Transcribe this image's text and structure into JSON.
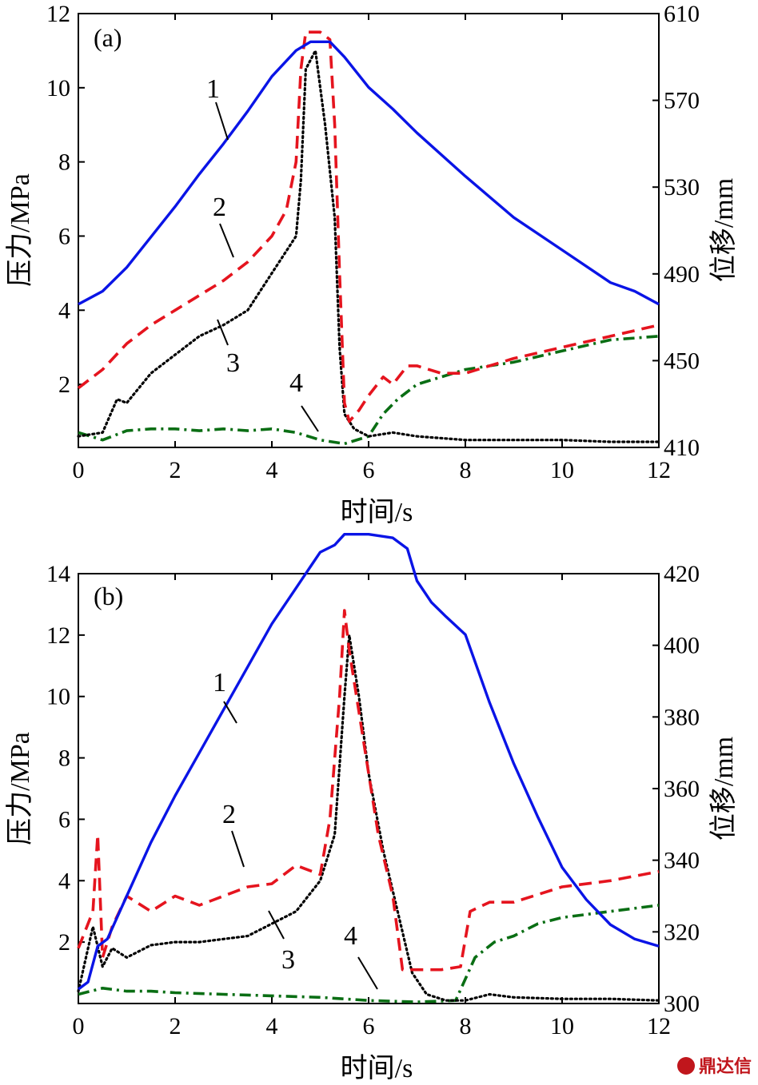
{
  "figure": {
    "watermark": "鼎达信"
  },
  "chart_data": [
    {
      "type": "line",
      "panel_label": "(a)",
      "xlabel": "时间/s",
      "ylabel_left": "压力/MPa",
      "ylabel_right": "位移/mm",
      "xlim": [
        0,
        12
      ],
      "ylim_left": [
        0.3,
        12
      ],
      "ylim_right": [
        410,
        610
      ],
      "xticks": [
        0,
        2,
        4,
        6,
        8,
        10,
        12
      ],
      "yticks_left": [
        2,
        4,
        6,
        8,
        10,
        12
      ],
      "yticks_right": [
        410,
        450,
        490,
        530,
        570,
        610
      ],
      "series": [
        {
          "name": "1",
          "axis": "right",
          "color": "#0a14e6",
          "dash": "solid",
          "x": [
            0,
            0.5,
            1,
            1.5,
            2,
            2.5,
            3,
            3.5,
            4,
            4.5,
            4.8,
            5.2,
            5.5,
            6,
            6.5,
            7,
            8,
            9,
            10,
            11,
            11.5,
            12
          ],
          "y": [
            476,
            482,
            493,
            507,
            521,
            536,
            550,
            565,
            581,
            593,
            597,
            597,
            590,
            576,
            566,
            555,
            535,
            516,
            501,
            486,
            482,
            476
          ]
        },
        {
          "name": "2",
          "axis": "left",
          "color": "#e5141e",
          "dash": "dashed",
          "x": [
            0,
            0.5,
            1,
            1.5,
            2,
            2.5,
            3,
            3.5,
            4,
            4.3,
            4.5,
            4.6,
            4.7,
            5.0,
            5.2,
            5.3,
            5.4,
            5.5,
            5.6,
            5.8,
            6.0,
            6.3,
            6.5,
            6.8,
            7,
            7.5,
            8,
            8.5,
            9,
            10,
            11,
            12
          ],
          "y": [
            1.9,
            2.4,
            3.1,
            3.6,
            4.0,
            4.4,
            4.8,
            5.3,
            6.0,
            6.7,
            8.0,
            10.5,
            11.5,
            11.5,
            11.3,
            9.0,
            5.0,
            1.5,
            1.0,
            1.3,
            1.7,
            2.2,
            2.0,
            2.5,
            2.5,
            2.3,
            2.3,
            2.5,
            2.7,
            3.0,
            3.3,
            3.6
          ]
        },
        {
          "name": "3",
          "axis": "left",
          "color": "#000000",
          "dash": "dotted",
          "x": [
            0,
            0.5,
            0.8,
            1,
            1.5,
            2,
            2.5,
            3,
            3.5,
            4,
            4.5,
            4.6,
            4.7,
            4.9,
            5.1,
            5.3,
            5.4,
            5.5,
            5.7,
            6.0,
            6.5,
            7,
            8,
            9,
            10,
            11,
            12
          ],
          "y": [
            0.6,
            0.7,
            1.6,
            1.5,
            2.3,
            2.8,
            3.3,
            3.6,
            4.0,
            5.0,
            6.0,
            7.5,
            10.5,
            11.0,
            9.0,
            6.5,
            3.0,
            1.2,
            0.8,
            0.6,
            0.7,
            0.6,
            0.5,
            0.5,
            0.5,
            0.45,
            0.45
          ]
        },
        {
          "name": "4",
          "axis": "left",
          "color": "#0a6e14",
          "dash": "dashdot",
          "x": [
            0,
            0.5,
            1,
            1.5,
            2,
            2.5,
            3,
            3.5,
            4,
            4.5,
            5,
            5.5,
            6,
            6.3,
            6.6,
            7,
            7.5,
            8,
            9,
            10,
            11,
            12
          ],
          "y": [
            0.7,
            0.5,
            0.75,
            0.8,
            0.8,
            0.75,
            0.8,
            0.75,
            0.8,
            0.7,
            0.5,
            0.4,
            0.6,
            1.2,
            1.6,
            2.0,
            2.2,
            2.4,
            2.6,
            2.9,
            3.2,
            3.3
          ]
        }
      ],
      "annotations": [
        "1",
        "2",
        "3",
        "4"
      ]
    },
    {
      "type": "line",
      "panel_label": "(b)",
      "xlabel": "时间/s",
      "ylabel_left": "压力/MPa",
      "ylabel_right": "位移/mm",
      "xlim": [
        0,
        12
      ],
      "ylim_left": [
        0,
        14
      ],
      "ylim_right": [
        300,
        420
      ],
      "xticks": [
        0,
        2,
        4,
        6,
        8,
        10,
        12
      ],
      "yticks_left": [
        2,
        4,
        6,
        8,
        10,
        12,
        14
      ],
      "yticks_right": [
        300,
        320,
        340,
        360,
        380,
        400,
        420
      ],
      "series": [
        {
          "name": "1",
          "axis": "right",
          "color": "#0a14e6",
          "dash": "solid",
          "x": [
            0,
            0.2,
            0.4,
            0.6,
            1,
            1.5,
            2,
            2.5,
            3,
            3.5,
            4,
            4.5,
            4.8,
            5.0,
            5.3,
            5.5,
            6,
            6.5,
            6.8,
            7.0,
            7.3,
            7.6,
            8,
            8.5,
            9,
            9.5,
            10,
            10.5,
            11,
            11.5,
            12
          ],
          "y": [
            304,
            306,
            316,
            318,
            330,
            345,
            358,
            370,
            382,
            394,
            406,
            416,
            422,
            426,
            428,
            431,
            431,
            430,
            427,
            418,
            412,
            408,
            403,
            384,
            367,
            352,
            338,
            329,
            322,
            318,
            316
          ]
        },
        {
          "name": "2",
          "axis": "left",
          "color": "#e5141e",
          "dash": "dashed",
          "x": [
            0,
            0.3,
            0.4,
            0.5,
            0.7,
            1,
            1.5,
            2,
            2.5,
            3,
            3.5,
            4,
            4.5,
            5.0,
            5.2,
            5.4,
            5.5,
            5.6,
            5.8,
            6.0,
            6.2,
            6.5,
            6.7,
            7.0,
            7.5,
            7.9,
            8.1,
            8.5,
            9,
            10,
            11,
            12
          ],
          "y": [
            1.8,
            3.0,
            5.5,
            1.5,
            2.5,
            3.5,
            3.0,
            3.5,
            3.2,
            3.5,
            3.8,
            3.9,
            4.5,
            4.2,
            6.0,
            10.0,
            12.8,
            11.5,
            9.5,
            7.5,
            5.5,
            3.5,
            1.1,
            1.1,
            1.1,
            1.2,
            3.0,
            3.3,
            3.3,
            3.8,
            4.0,
            4.3
          ]
        },
        {
          "name": "3",
          "axis": "left",
          "color": "#000000",
          "dash": "dotted",
          "x": [
            0,
            0.3,
            0.5,
            0.7,
            1,
            1.5,
            2,
            2.5,
            3,
            3.5,
            4,
            4.5,
            5.0,
            5.3,
            5.5,
            5.6,
            5.8,
            6.0,
            6.3,
            6.6,
            6.9,
            7.2,
            7.6,
            8,
            8.5,
            9,
            10,
            11,
            12
          ],
          "y": [
            0.4,
            2.5,
            1.2,
            1.8,
            1.5,
            1.9,
            2.0,
            2.0,
            2.1,
            2.2,
            2.6,
            3.0,
            4.0,
            5.5,
            10.0,
            12.0,
            10.0,
            7.5,
            5.0,
            3.0,
            1.0,
            0.3,
            0.1,
            0.1,
            0.3,
            0.2,
            0.15,
            0.15,
            0.1
          ]
        },
        {
          "name": "4",
          "axis": "left",
          "color": "#0a6e14",
          "dash": "dashdot",
          "x": [
            0,
            0.5,
            1,
            1.5,
            2,
            3,
            4,
            5,
            6,
            7,
            7.8,
            8.2,
            8.6,
            9,
            9.5,
            10,
            11,
            12
          ],
          "y": [
            0.3,
            0.5,
            0.4,
            0.4,
            0.35,
            0.3,
            0.25,
            0.2,
            0.1,
            0.05,
            0.1,
            1.5,
            2.0,
            2.2,
            2.6,
            2.8,
            3.0,
            3.2
          ]
        }
      ],
      "annotations": [
        "1",
        "2",
        "3",
        "4"
      ]
    }
  ]
}
